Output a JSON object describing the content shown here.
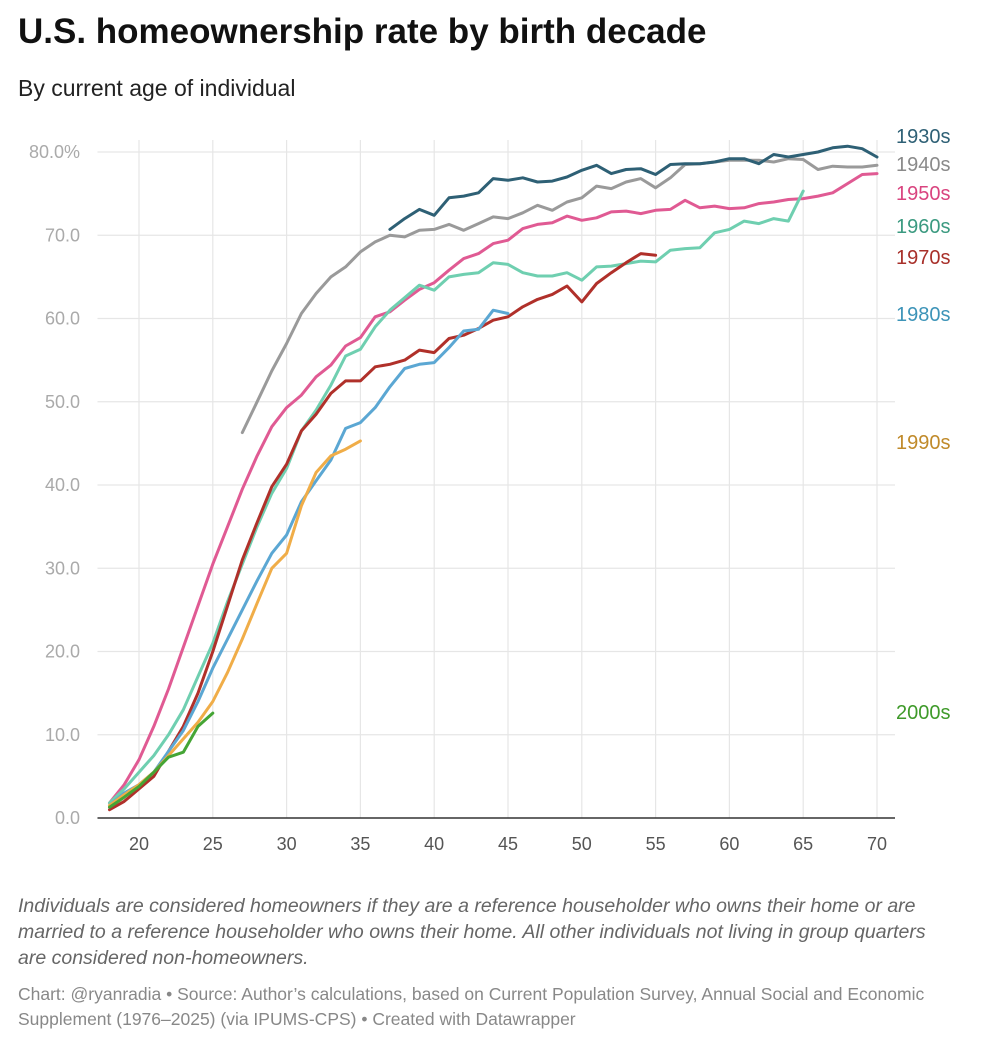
{
  "title": "U.S. homeownership rate by birth decade",
  "subtitle": "By current age of individual",
  "notes": "Individuals are considered homeowners if they are a reference householder who owns their home or are married to a reference householder who owns their home. All other individuals not living in group quarters are considered non-homeowners.",
  "credits": "Chart: @ryanradia • Source: Author’s calculations, based on Current Population Survey, Annual Social and Economic Supplement (1976–2025) (via IPUMS-CPS) • Created with Datawrapper",
  "chart_data": {
    "type": "line",
    "xlim": [
      18,
      70
    ],
    "ylim": [
      0,
      80
    ],
    "grid": true,
    "legend": "direct labels right",
    "x_ticks": [
      20,
      25,
      30,
      35,
      40,
      45,
      50,
      55,
      60,
      65,
      70
    ],
    "y_ticks": [
      0,
      10,
      20,
      30,
      40,
      50,
      60,
      70,
      80
    ],
    "y_tick_labels": [
      "0.0",
      "10.0",
      "20.0",
      "30.0",
      "40.0",
      "50.0",
      "60.0",
      "70.0",
      "80.0%"
    ],
    "series": [
      {
        "name": "1930s",
        "color": "#2e6075",
        "label_color": "#2e6075",
        "start_age": 37,
        "values": [
          70.7,
          72.0,
          73.1,
          72.4,
          74.5,
          74.7,
          75.1,
          76.8,
          76.6,
          76.9,
          76.4,
          76.5,
          77.0,
          77.8,
          78.4,
          77.4,
          77.9,
          78.0,
          77.3,
          78.5,
          78.6,
          78.6,
          78.8,
          79.2,
          79.2,
          78.6,
          79.7,
          79.4,
          79.7,
          80.0,
          80.5,
          80.7,
          80.4,
          79.4
        ]
      },
      {
        "name": "1940s",
        "color": "#9a9a9a",
        "label_color": "#8a8a8a",
        "start_age": 27,
        "values": [
          46.3,
          50.0,
          53.7,
          57.0,
          60.6,
          63.0,
          65.0,
          66.2,
          68.0,
          69.2,
          70.0,
          69.8,
          70.6,
          70.7,
          71.3,
          70.6,
          71.4,
          72.2,
          72.0,
          72.7,
          73.6,
          73.0,
          74.0,
          74.5,
          75.9,
          75.6,
          76.4,
          76.8,
          75.7,
          76.9,
          78.5,
          78.6,
          78.8,
          79.0,
          79.0,
          79.0,
          78.8,
          79.2,
          79.1,
          77.9,
          78.3,
          78.2,
          78.2,
          78.4
        ]
      },
      {
        "name": "1950s",
        "color": "#e05a93",
        "label_color": "#d9447f",
        "start_age": 18,
        "values": [
          1.8,
          4.0,
          7.0,
          11.0,
          15.5,
          20.5,
          25.5,
          30.5,
          35.0,
          39.5,
          43.5,
          47.0,
          49.3,
          50.8,
          53.0,
          54.4,
          56.7,
          57.7,
          60.2,
          60.8,
          62.2,
          63.5,
          64.3,
          65.8,
          67.2,
          67.8,
          69.0,
          69.4,
          70.8,
          71.3,
          71.5,
          72.3,
          71.8,
          72.1,
          72.8,
          72.9,
          72.6,
          73.0,
          73.1,
          74.2,
          73.3,
          73.5,
          73.2,
          73.3,
          73.8,
          74.0,
          74.3,
          74.4,
          74.7,
          75.1,
          76.2,
          77.3,
          77.4
        ]
      },
      {
        "name": "1960s",
        "color": "#6fcfb0",
        "label_color": "#3b9a80",
        "start_age": 18,
        "values": [
          1.8,
          3.5,
          5.5,
          7.5,
          10.0,
          13.0,
          17.0,
          21.0,
          26.0,
          30.5,
          35.0,
          39.0,
          42.0,
          46.5,
          49.0,
          52.0,
          55.5,
          56.3,
          59.0,
          61.0,
          62.5,
          64.0,
          63.4,
          65.0,
          65.3,
          65.5,
          66.7,
          66.5,
          65.5,
          65.1,
          65.1,
          65.5,
          64.6,
          66.2,
          66.3,
          66.6,
          66.9,
          66.8,
          68.2,
          68.4,
          68.5,
          70.3,
          70.7,
          71.7,
          71.4,
          72.0,
          71.7,
          75.3
        ]
      },
      {
        "name": "1970s",
        "color": "#b0302a",
        "label_color": "#a8302a",
        "start_age": 18,
        "values": [
          1.0,
          2.0,
          3.5,
          5.0,
          8.0,
          11.0,
          15.0,
          20.0,
          25.5,
          31.0,
          35.5,
          39.8,
          42.5,
          46.5,
          48.5,
          51.0,
          52.5,
          52.5,
          54.2,
          54.5,
          55.0,
          56.2,
          55.9,
          57.6,
          58.0,
          58.8,
          59.8,
          60.2,
          61.4,
          62.3,
          62.9,
          63.9,
          62.0,
          64.2,
          65.5,
          66.7,
          67.8,
          67.6
        ]
      },
      {
        "name": "1980s",
        "color": "#5ba7d3",
        "label_color": "#3d94b8",
        "start_age": 18,
        "values": [
          1.5,
          3.0,
          4.0,
          5.5,
          8.0,
          10.5,
          14.0,
          18.0,
          21.5,
          25.0,
          28.5,
          31.8,
          34.0,
          38.0,
          40.5,
          43.0,
          46.8,
          47.5,
          49.3,
          51.8,
          54.0,
          54.5,
          54.7,
          56.5,
          58.5,
          58.7,
          61.0,
          60.6
        ]
      },
      {
        "name": "1990s",
        "color": "#f0ad48",
        "label_color": "#c08a2a",
        "start_age": 18,
        "values": [
          1.5,
          2.8,
          4.0,
          5.5,
          7.5,
          9.5,
          11.5,
          14.0,
          17.5,
          21.5,
          25.8,
          30.0,
          31.8,
          37.5,
          41.5,
          43.5,
          44.3,
          45.3
        ]
      },
      {
        "name": "2000s",
        "color": "#45a535",
        "label_color": "#3f9a2a",
        "start_age": 18,
        "values": [
          1.3,
          2.5,
          3.8,
          5.5,
          7.3,
          7.9,
          11.0,
          12.6
        ]
      }
    ]
  }
}
